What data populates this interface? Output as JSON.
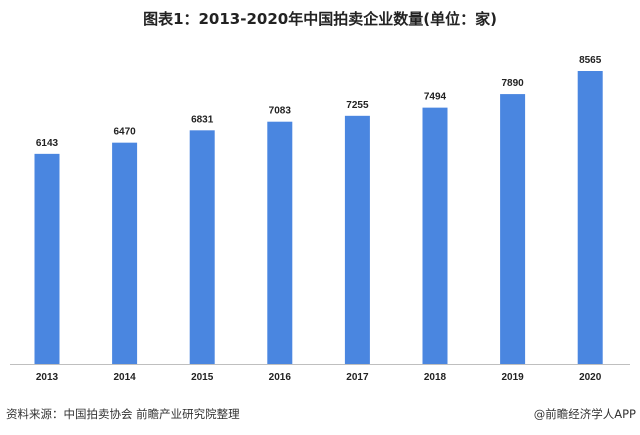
{
  "chart_data": {
    "type": "bar",
    "title": "图表1：2013-2020年中国拍卖企业数量(单位：家)",
    "categories": [
      "2013",
      "2014",
      "2015",
      "2016",
      "2017",
      "2018",
      "2019",
      "2020"
    ],
    "values": [
      6143,
      6470,
      6831,
      7083,
      7255,
      7494,
      7890,
      8565
    ],
    "ylim": [
      0,
      8565
    ],
    "grid": false,
    "bar_color": "#4a86e0"
  },
  "footer": {
    "source": "资料来源：中国拍卖协会 前瞻产业研究院整理",
    "credit": "@前瞻经济学人APP"
  }
}
